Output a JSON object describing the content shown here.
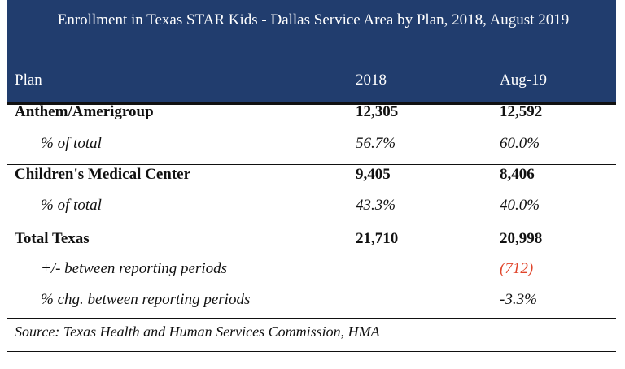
{
  "header": {
    "title": "Enrollment in Texas STAR Kids - Dallas Service Area by Plan, 2018, August 2019",
    "columns": [
      "Plan",
      "2018",
      "Aug-19"
    ]
  },
  "table": {
    "rows": [
      {
        "label": "Anthem/Amerigroup",
        "bold": true,
        "col_2018": "12,305",
        "col_aug19": "12,592"
      },
      {
        "label": "% of total",
        "italic": true,
        "col_2018": "56.7%",
        "col_aug19": "60.0%"
      },
      {
        "label": "Children's Medical Center",
        "bold": true,
        "col_2018": "9,405",
        "col_aug19": "8,406"
      },
      {
        "label": "% of total",
        "italic": true,
        "col_2018": "43.3%",
        "col_aug19": "40.0%"
      },
      {
        "label": "Total Texas",
        "bold": true,
        "col_2018": "21,710",
        "col_aug19": "20,998"
      },
      {
        "label": "+/- between reporting periods",
        "italic": true,
        "col_aug19": "(712)",
        "color": "#e0452b"
      },
      {
        "label": "% chg. between reporting periods",
        "italic": true,
        "col_aug19": "-3.3%"
      }
    ]
  },
  "footer": {
    "source": "Source: Texas Health and Human Services Commission, HMA"
  }
}
